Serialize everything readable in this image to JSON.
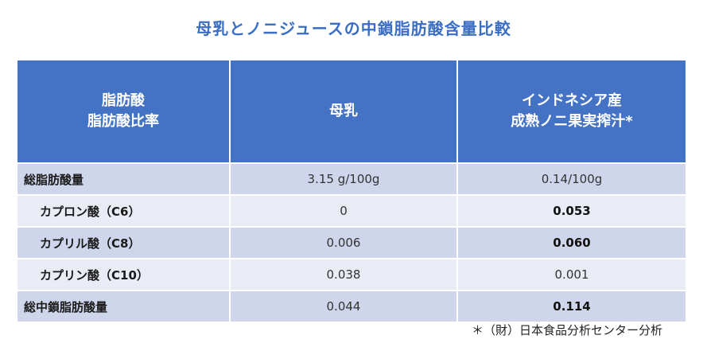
{
  "title": "母乳とノニジュースの中鎖脂肪酸含量比較",
  "table": {
    "headers": [
      {
        "line1": "脂肪酸",
        "line2": "脂肪酸比率"
      },
      {
        "line1": "母乳",
        "line2": ""
      },
      {
        "line1": "インドネシア産",
        "line2": "成熟ノニ果実搾汁*"
      }
    ],
    "rows": [
      {
        "label": "総脂肪酸量",
        "milk": "3.15 g/100g",
        "noni": "0.14/100g"
      },
      {
        "label": "カプロン酸（C6）",
        "milk": "0",
        "noni": "0.053"
      },
      {
        "label": "カプリル酸（C8）",
        "milk": "0.006",
        "noni": "0.060"
      },
      {
        "label": "カプリン酸（C10）",
        "milk": "0.038",
        "noni": "0.001"
      },
      {
        "label": "総中鎖脂肪酸量",
        "milk": "0.044",
        "noni": "0.114"
      }
    ]
  },
  "footnote": "＊（財）日本食品分析センター分析"
}
